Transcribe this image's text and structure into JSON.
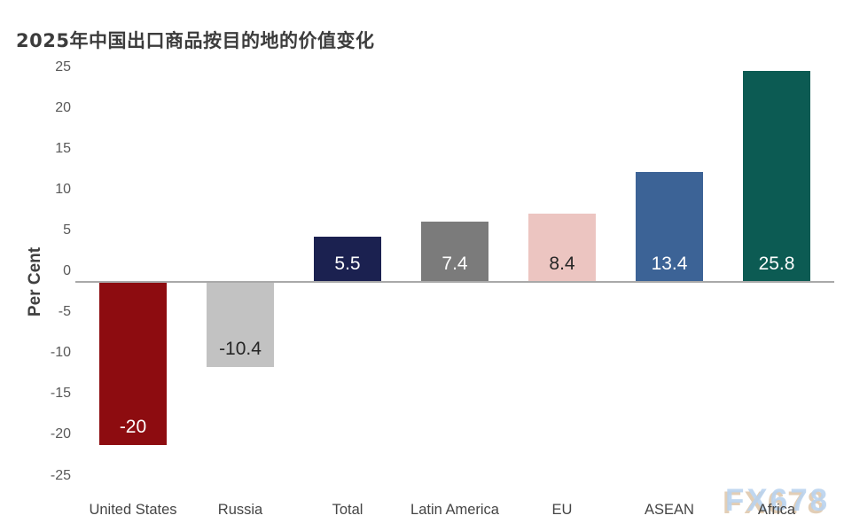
{
  "title": "2025年中国出口商品按目的地的价值变化",
  "watermark": "FX678",
  "colors": {
    "title_text": "#3c3c3c",
    "axis_line": "#a9a9a9",
    "tick_label": "#595959",
    "category_label": "#454545",
    "watermark_blue": "#b9d3ee",
    "watermark_tan": "#d8be9e"
  },
  "chart_data": {
    "type": "bar",
    "title": "2025年中国出口商品按目的地的价值变化",
    "xlabel": "",
    "ylabel": "Per Cent",
    "ylim": [
      -25,
      25
    ],
    "ytick_interval": 5,
    "ytick_labels": [
      "25",
      "20",
      "15",
      "10",
      "5",
      "0",
      "-5",
      "-10",
      "-15",
      "-20",
      "-25"
    ],
    "grid": false,
    "legend": null,
    "categories": [
      "United States",
      "Russia",
      "Total",
      "Latin America",
      "EU",
      "ASEAN",
      "Africa"
    ],
    "values": [
      -20,
      -10.4,
      5.5,
      7.4,
      8.4,
      13.4,
      25.8
    ],
    "value_labels": [
      "-20",
      "-10.4",
      "5.5",
      "7.4",
      "8.4",
      "13.4",
      "25.8"
    ],
    "bar_colors": [
      "#8d0c10",
      "#c2c2c2",
      "#1b2150",
      "#7b7b7b",
      "#ecc5c1",
      "#3c6396",
      "#0c5b53"
    ],
    "value_label_colors": [
      "#ffffff",
      "#262626",
      "#ffffff",
      "#ffffff",
      "#262626",
      "#ffffff",
      "#ffffff"
    ]
  }
}
